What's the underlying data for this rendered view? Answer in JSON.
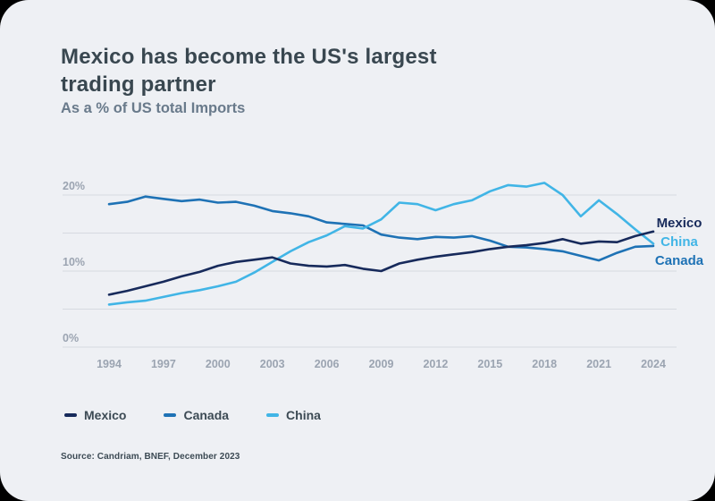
{
  "source": "Source: Candriam, BNEF, December 2023",
  "colors": {
    "card_bg": "#eef0f4",
    "title_text": "#394750",
    "subtitle_text": "#697a8b",
    "tick_text": "#9ba4b1",
    "grid": "#d6dae0",
    "mexico": "#172a5b",
    "canada": "#1e72b5",
    "china": "#41b5e6"
  },
  "chart_data": {
    "type": "line",
    "title": "Mexico has become the US's largest trading partner",
    "title_lines": [
      "Mexico has become the US's largest",
      "trading partner"
    ],
    "subtitle": "As a % of US total Imports",
    "xlabel": "",
    "ylabel": "% of US total Imports",
    "x": [
      1994,
      1995,
      1996,
      1997,
      1998,
      1999,
      2000,
      2001,
      2002,
      2003,
      2004,
      2005,
      2006,
      2007,
      2008,
      2009,
      2010,
      2011,
      2012,
      2013,
      2014,
      2015,
      2016,
      2017,
      2018,
      2019,
      2020,
      2021,
      2022,
      2023,
      2024
    ],
    "series": [
      {
        "name": "Mexico",
        "color": "#172a5b",
        "values": [
          6.9,
          7.4,
          8.0,
          8.6,
          9.3,
          9.9,
          10.7,
          11.2,
          11.5,
          11.8,
          11.0,
          10.7,
          10.6,
          10.8,
          10.3,
          10.0,
          11.0,
          11.5,
          11.9,
          12.2,
          12.5,
          12.9,
          13.2,
          13.4,
          13.7,
          14.2,
          13.6,
          13.9,
          13.8,
          14.6,
          15.2
        ]
      },
      {
        "name": "Canada",
        "color": "#1e72b5",
        "values": [
          18.8,
          19.1,
          19.8,
          19.5,
          19.2,
          19.4,
          19.0,
          19.1,
          18.6,
          17.9,
          17.6,
          17.2,
          16.4,
          16.2,
          16.0,
          14.8,
          14.4,
          14.2,
          14.5,
          14.4,
          14.6,
          14.0,
          13.2,
          13.1,
          12.9,
          12.6,
          12.0,
          11.4,
          12.4,
          13.2,
          13.3
        ]
      },
      {
        "name": "China",
        "color": "#41b5e6",
        "values": [
          5.6,
          5.9,
          6.1,
          6.6,
          7.1,
          7.5,
          8.0,
          8.6,
          9.8,
          11.2,
          12.6,
          13.8,
          14.7,
          15.9,
          15.6,
          16.8,
          19.0,
          18.8,
          18.0,
          18.8,
          19.3,
          20.5,
          21.3,
          21.1,
          21.6,
          20.0,
          17.2,
          19.3,
          17.5,
          15.5,
          13.6
        ]
      }
    ],
    "draw_order": [
      "Canada",
      "China",
      "Mexico"
    ],
    "xticks": [
      1994,
      1997,
      2000,
      2003,
      2006,
      2009,
      2012,
      2015,
      2018,
      2021,
      2024
    ],
    "yticks": [
      {
        "value": 0,
        "label": "0%"
      },
      {
        "value": 10,
        "label": "10%"
      },
      {
        "value": 20,
        "label": "20%"
      }
    ],
    "gridlines": [
      0,
      5,
      10,
      15,
      20
    ],
    "ylim": [
      0,
      23
    ],
    "grid": "horizontal-only",
    "legend_position": "bottom",
    "legend": [
      {
        "label": "Mexico",
        "color": "#172a5b"
      },
      {
        "label": "Canada",
        "color": "#1e72b5"
      },
      {
        "label": "China",
        "color": "#41b5e6"
      }
    ],
    "end_labels": [
      {
        "label": "Mexico",
        "color": "#172a5b"
      },
      {
        "label": "China",
        "color": "#41b5e6"
      },
      {
        "label": "Canada",
        "color": "#1e72b5"
      }
    ]
  }
}
